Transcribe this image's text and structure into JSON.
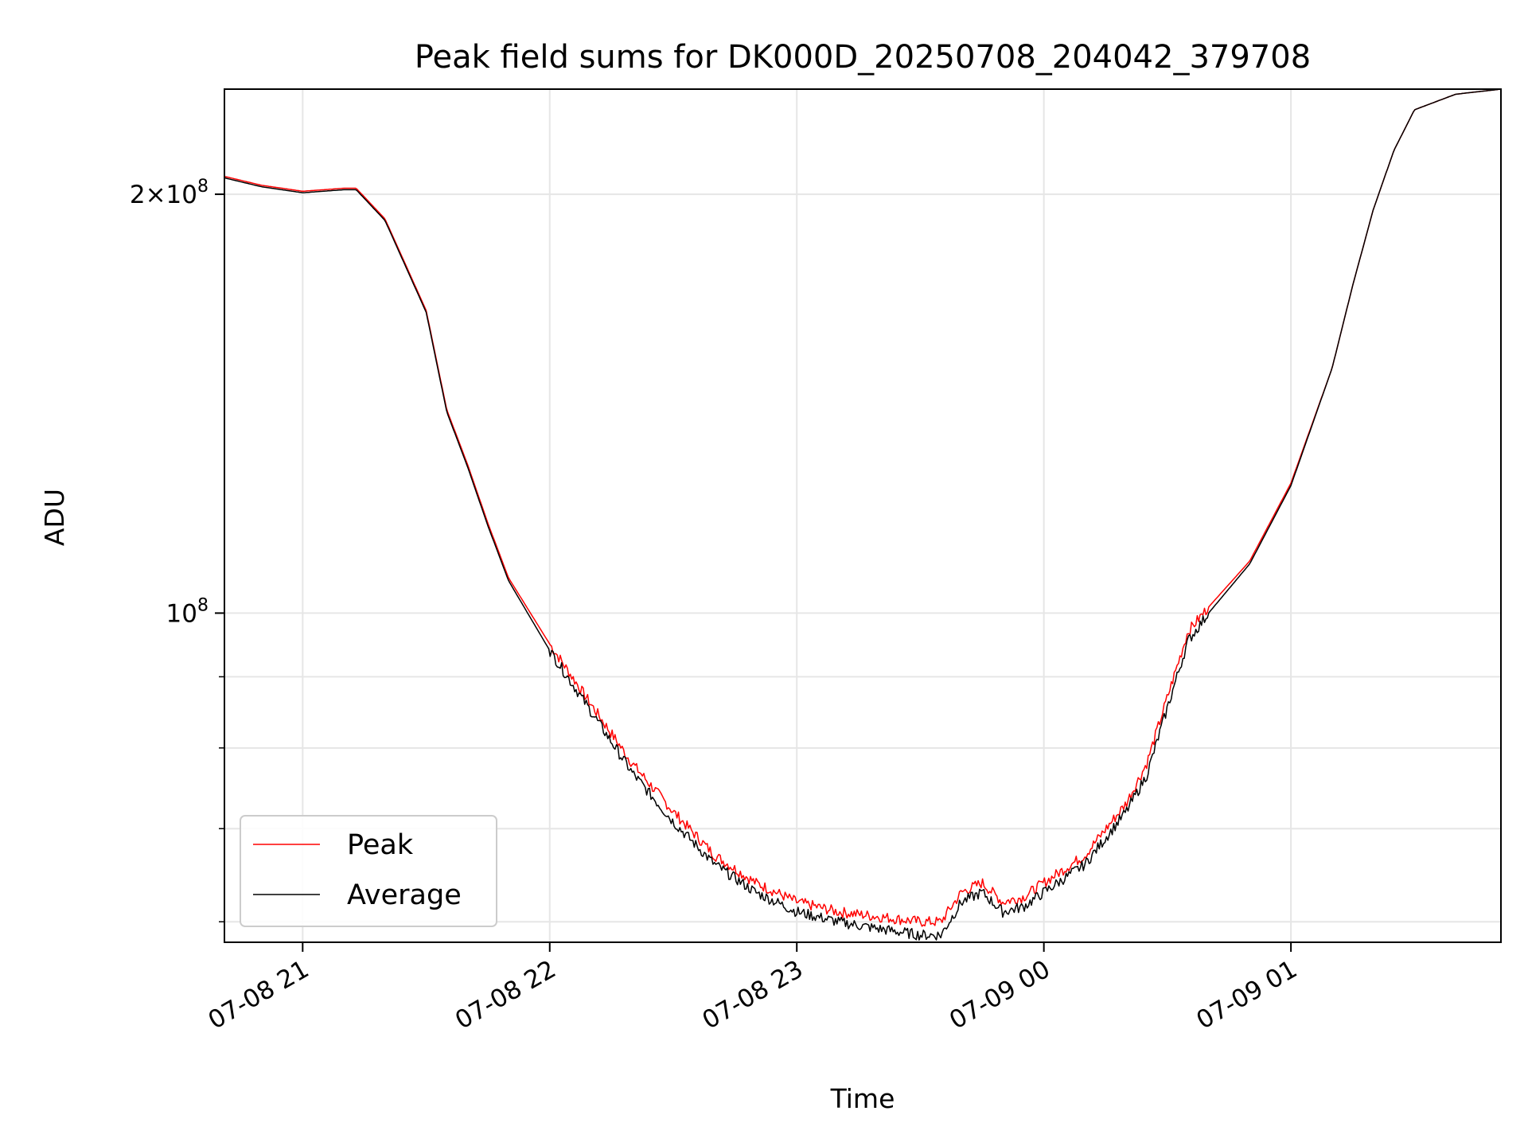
{
  "chart_data": {
    "type": "line",
    "title": "Peak field sums for DK000D_20250708_204042_379708",
    "xlabel": "Time",
    "ylabel": "ADU",
    "yscale": "log",
    "ylim": [
      58000000,
      238000000
    ],
    "xlim": [
      "07-08 20:41",
      "07-09 01:51"
    ],
    "grid": true,
    "legend_position": "lower-left",
    "x_ticks": [
      "07-08 21",
      "07-08 22",
      "07-08 23",
      "07-09 00",
      "07-09 01"
    ],
    "y_ticks": [
      {
        "value": 100000000,
        "mantissa": "",
        "exp": "8"
      },
      {
        "value": 200000000,
        "mantissa": "2",
        "exp": "8"
      }
    ],
    "x": [
      "07-08 20:41",
      "07-08 20:50",
      "07-08 21:00",
      "07-08 21:10",
      "07-08 21:13",
      "07-08 21:20",
      "07-08 21:25",
      "07-08 21:30",
      "07-08 21:35",
      "07-08 21:40",
      "07-08 21:45",
      "07-08 21:50",
      "07-08 22:00",
      "07-08 22:10",
      "07-08 22:20",
      "07-08 22:30",
      "07-08 22:40",
      "07-08 22:50",
      "07-08 23:00",
      "07-08 23:10",
      "07-08 23:20",
      "07-08 23:30",
      "07-08 23:35",
      "07-08 23:40",
      "07-08 23:45",
      "07-08 23:50",
      "07-08 23:55",
      "07-09 00:00",
      "07-09 00:10",
      "07-09 00:20",
      "07-09 00:25",
      "07-09 00:30",
      "07-09 00:35",
      "07-09 00:40",
      "07-09 00:50",
      "07-09 01:00",
      "07-09 01:10",
      "07-09 01:15",
      "07-09 01:20",
      "07-09 01:25",
      "07-09 01:30",
      "07-09 01:40",
      "07-09 01:51"
    ],
    "series": [
      {
        "name": "Peak",
        "color": "#ff0000",
        "values": [
          206000000,
          203000000,
          201000000,
          202000000,
          202000000,
          192000000,
          178000000,
          165000000,
          140000000,
          128000000,
          116000000,
          106000000,
          95000000,
          86000000,
          78000000,
          72000000,
          67000000,
          64000000,
          62000000,
          61000000,
          60500000,
          60000000,
          60000000,
          63000000,
          64000000,
          62000000,
          62500000,
          64000000,
          67000000,
          73000000,
          78000000,
          87000000,
          97000000,
          101000000,
          109000000,
          124000000,
          150000000,
          172000000,
          195000000,
          215000000,
          230000000,
          236000000,
          238000000
        ]
      },
      {
        "name": "Average",
        "color": "#000000",
        "values": [
          205500000,
          202500000,
          200500000,
          201500000,
          201500000,
          191500000,
          177500000,
          164500000,
          139500000,
          127500000,
          115500000,
          105500000,
          94000000,
          85000000,
          76800000,
          70800000,
          66000000,
          63000000,
          61000000,
          60000000,
          59300000,
          58700000,
          58700000,
          62000000,
          63000000,
          61000000,
          61500000,
          63000000,
          66000000,
          72000000,
          76500000,
          85500000,
          95500000,
          100000000,
          108500000,
          123500000,
          150000000,
          172000000,
          195000000,
          215000000,
          230000000,
          236000000,
          238000000
        ]
      }
    ]
  }
}
